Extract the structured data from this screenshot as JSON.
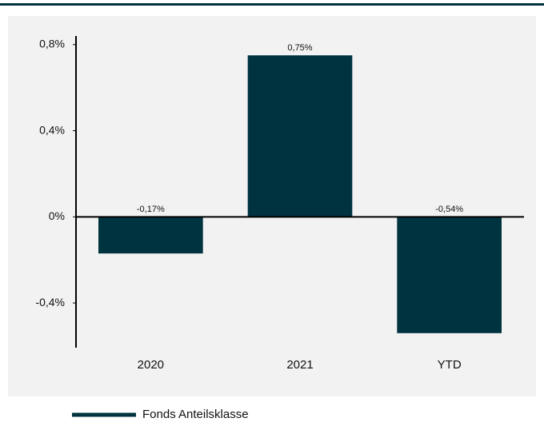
{
  "chart_data": {
    "type": "bar",
    "categories": [
      "2020",
      "2021",
      "YTD"
    ],
    "series": [
      {
        "name": "Fonds Anteilsklasse",
        "color": "#003340",
        "values": [
          -0.17,
          0.75,
          -0.54
        ],
        "value_labels": [
          "-0,17%",
          "0,75%",
          "-0,54%"
        ]
      }
    ],
    "ylim": [
      -0.6,
      0.84
    ],
    "yticks": [
      {
        "value": 0.8,
        "label": "0,8%"
      },
      {
        "value": 0.4,
        "label": "0,4%"
      },
      {
        "value": 0,
        "label": "0%"
      },
      {
        "value": -0.4,
        "label": "-0,4%"
      }
    ],
    "legend": "bottom-left"
  }
}
